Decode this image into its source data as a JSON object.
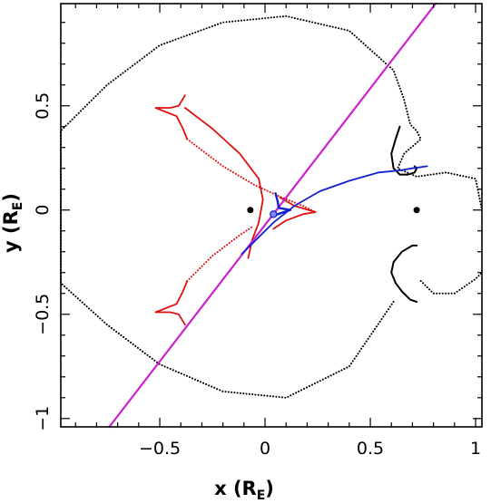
{
  "chart_data": {
    "type": "line",
    "title": "",
    "xlabel": {
      "main": "x (R",
      "sub": "E",
      "close": ")"
    },
    "ylabel": {
      "main": "y (R",
      "sub": "E",
      "close": ")"
    },
    "xlim": [
      -0.97,
      1.03
    ],
    "ylim": [
      -1.04,
      0.99
    ],
    "x_ticks": [
      {
        "value": -0.5,
        "label": "−0.5"
      },
      {
        "value": 0,
        "label": "0"
      },
      {
        "value": 0.5,
        "label": "0.5"
      },
      {
        "value": 1,
        "label": "1"
      }
    ],
    "y_ticks": [
      {
        "value": -1,
        "label": "−1"
      },
      {
        "value": -0.5,
        "label": "−0.5"
      },
      {
        "value": 0,
        "label": "0"
      },
      {
        "value": 0.5,
        "label": "0.5"
      }
    ],
    "grid": false,
    "colors": {
      "critical_curve": "#000000",
      "caustic": "#dd1111",
      "source_trajectory": "#cc22cc",
      "image_track": "#1122cc",
      "lens": "#000000"
    },
    "lenses": [
      {
        "x": -0.07,
        "y": 0.0
      },
      {
        "x": 0.72,
        "y": 0.0
      }
    ],
    "source_trajectory": {
      "x": [
        -0.74,
        0.81
      ],
      "y": [
        -1.04,
        0.99
      ]
    },
    "critical_curve_outer": {
      "x": [
        0.61,
        0.4,
        0.1,
        -0.2,
        -0.5,
        -0.75,
        -0.97,
        -0.97,
        -0.75,
        -0.5,
        -0.2,
        0.1,
        0.4,
        0.61,
        0.66,
        0.69,
        0.72,
        0.74,
        0.66,
        0.63,
        0.72,
        0.86,
        1.0,
        1.03
      ],
      "y": [
        -0.44,
        -0.75,
        -0.9,
        -0.87,
        -0.74,
        -0.55,
        -0.35,
        0.38,
        0.6,
        0.79,
        0.9,
        0.93,
        0.86,
        0.67,
        0.53,
        0.41,
        0.38,
        0.34,
        0.27,
        0.2,
        0.16,
        0.18,
        0.15,
        0.0
      ]
    },
    "critical_curve_lower_right": {
      "x": [
        0.74,
        0.8,
        0.9,
        1.0,
        1.03
      ],
      "y": [
        -0.34,
        -0.4,
        -0.4,
        -0.33,
        -0.3
      ]
    },
    "critical_curve_inner_upper": {
      "x": [
        0.64,
        0.62,
        0.6,
        0.61,
        0.64,
        0.68,
        0.71,
        0.72,
        0.71
      ],
      "y": [
        0.4,
        0.34,
        0.27,
        0.2,
        0.17,
        0.17,
        0.18,
        0.2,
        0.21
      ]
    },
    "critical_curve_inner_lower": {
      "x": [
        0.72,
        0.7,
        0.65,
        0.61,
        0.6,
        0.62,
        0.65,
        0.69,
        0.72
      ],
      "y": [
        -0.17,
        -0.17,
        -0.2,
        -0.25,
        -0.3,
        -0.35,
        -0.39,
        -0.43,
        -0.44
      ]
    },
    "caustic_upper_cusp": {
      "x": [
        -0.38,
        -0.41,
        -0.45,
        -0.52,
        -0.42,
        -0.39,
        -0.37
      ],
      "y": [
        0.55,
        0.5,
        0.49,
        0.49,
        0.45,
        0.39,
        0.34
      ]
    },
    "caustic_lower_cusp": {
      "x": [
        -0.37,
        -0.39,
        -0.42,
        -0.52,
        -0.45,
        -0.41,
        -0.38
      ],
      "y": [
        -0.34,
        -0.39,
        -0.45,
        -0.49,
        -0.49,
        -0.5,
        -0.55
      ]
    },
    "caustic_central": {
      "x": [
        -0.38,
        -0.25,
        -0.12,
        -0.03,
        -0.01,
        -0.03,
        -0.06,
        -0.08
      ],
      "y": [
        0.49,
        0.39,
        0.27,
        0.15,
        0.05,
        -0.06,
        -0.14,
        -0.23
      ]
    },
    "caustic_dotted_fold": {
      "x": [
        -0.37,
        -0.2,
        -0.05,
        0.08,
        0.18,
        0.24
      ],
      "y": [
        0.34,
        0.21,
        0.12,
        0.06,
        0.02,
        -0.01
      ]
    },
    "caustic_dotted_lower": {
      "x": [
        -0.37,
        -0.25,
        -0.12,
        -0.06
      ],
      "y": [
        -0.34,
        -0.22,
        -0.12,
        -0.08
      ]
    },
    "caustic_right_cusp": {
      "x": [
        0.07,
        0.14,
        0.24,
        0.18,
        0.1,
        0.04
      ],
      "y": [
        0.06,
        0.02,
        -0.01,
        -0.02,
        -0.05,
        -0.09
      ]
    },
    "image_track": {
      "x": [
        -0.11,
        -0.05,
        0.04,
        0.14,
        0.26,
        0.4,
        0.54,
        0.64,
        0.7,
        0.77
      ],
      "y": [
        -0.21,
        -0.15,
        -0.06,
        0.02,
        0.09,
        0.14,
        0.18,
        0.19,
        0.2,
        0.21
      ]
    },
    "image_cusp": {
      "x": [
        0.05,
        0.06,
        0.065,
        0.12,
        0.06,
        0.04
      ],
      "y": [
        0.08,
        0.04,
        0.01,
        0.0,
        -0.02,
        -0.03
      ]
    },
    "source_position": {
      "x": 0.04,
      "y": -0.02
    }
  }
}
